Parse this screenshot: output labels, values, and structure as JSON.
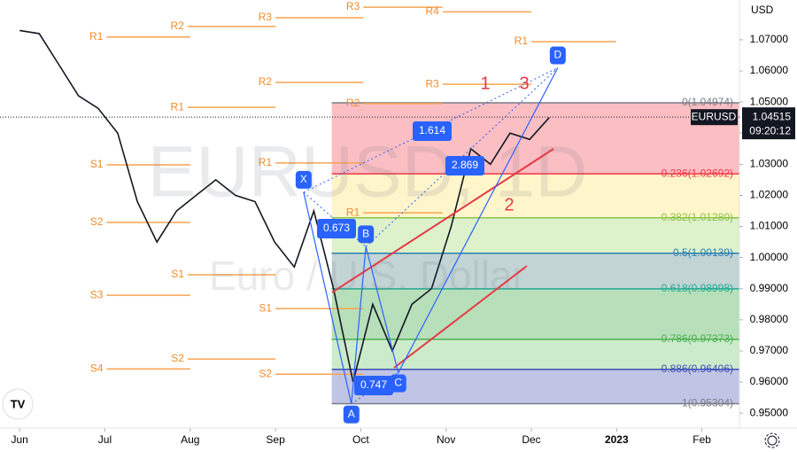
{
  "chart_data": {
    "type": "line",
    "currency": "USD",
    "watermark": "EURUSD, 1D",
    "watermark_sub": "Euro / U.S. Dollar",
    "symbol": "EURUSD",
    "last_price": {
      "value": 1.04515,
      "label": "1.04515"
    },
    "countdown": "09:20:12",
    "xlim": [
      -0.23,
      8.44
    ],
    "ylim": [
      0.9452,
      1.0828
    ],
    "xticks": [
      {
        "value": 0,
        "label": "Jun"
      },
      {
        "value": 1,
        "label": "Jul"
      },
      {
        "value": 2,
        "label": "Aug"
      },
      {
        "value": 3,
        "label": "Sep"
      },
      {
        "value": 4,
        "label": "Oct"
      },
      {
        "value": 5,
        "label": "Nov"
      },
      {
        "value": 6,
        "label": "Dec"
      },
      {
        "value": 7,
        "label": "2023"
      },
      {
        "value": 8,
        "label": "Feb"
      }
    ],
    "yticks": [
      {
        "value": 0.95,
        "label": "0.95000"
      },
      {
        "value": 0.96,
        "label": "0.96000"
      },
      {
        "value": 0.97,
        "label": "0.97000"
      },
      {
        "value": 0.98,
        "label": "0.98000"
      },
      {
        "value": 0.99,
        "label": "0.99000"
      },
      {
        "value": 1.0,
        "label": "1.00000"
      },
      {
        "value": 1.01,
        "label": "1.01000"
      },
      {
        "value": 1.02,
        "label": "1.02000"
      },
      {
        "value": 1.03,
        "label": "1.03000"
      },
      {
        "value": 1.04,
        "label": "1.04000"
      },
      {
        "value": 1.05,
        "label": "1.05000"
      },
      {
        "value": 1.06,
        "label": "1.06000"
      },
      {
        "value": 1.07,
        "label": "1.07000"
      }
    ],
    "series": [
      {
        "color": "#131722",
        "x": [
          0,
          0.23,
          0.46,
          0.69,
          0.92,
          1.15,
          1.38,
          1.61,
          1.84,
          2.07,
          2.3,
          2.53,
          2.76,
          2.99,
          3.22,
          3.45,
          3.68,
          3.91,
          4.14,
          4.37,
          4.6,
          4.83,
          5.06,
          5.29,
          5.52,
          5.75,
          5.98,
          6.21
        ],
        "values": [
          1.073,
          1.072,
          1.062,
          1.052,
          1.048,
          1.04,
          1.018,
          1.005,
          1.015,
          1.02,
          1.025,
          1.02,
          1.018,
          1.005,
          0.997,
          1.015,
          0.99,
          0.96,
          0.985,
          0.97,
          0.985,
          0.99,
          1.01,
          1.035,
          1.03,
          1.04,
          1.038,
          1.045
        ]
      }
    ],
    "fib_x": [
      3.66,
      8.44
    ],
    "fib_levels": [
      {
        "value": 1.04974,
        "label": "0(1.04974)",
        "color": "#787b86"
      },
      {
        "value": 1.02692,
        "label": "0.236(1.02692)",
        "color": "#f23645"
      },
      {
        "value": 1.0128,
        "label": "0.382(1.01280)",
        "color": "#8bc34a"
      },
      {
        "value": 1.00139,
        "label": "0.5(1.00139)",
        "color": "#2a7fb0"
      },
      {
        "value": 0.98998,
        "label": "0.618(0.98998)",
        "color": "#22ab94"
      },
      {
        "value": 0.97373,
        "label": "0.786(0.97373)",
        "color": "#4caf50"
      },
      {
        "value": 0.96406,
        "label": "0.886(0.96406)",
        "color": "#3f51b5"
      },
      {
        "value": 0.95304,
        "label": "1(0.95304)",
        "color": "#787b86"
      }
    ],
    "fib_zone_colors": [
      "rgba(242,54,69,0.32)",
      "rgba(255,236,150,0.5)",
      "rgba(180,225,140,0.45)",
      "rgba(120,160,160,0.45)",
      "rgba(76,175,80,0.4)",
      "rgba(140,210,140,0.45)",
      "rgba(100,110,190,0.4)"
    ],
    "pivots": [
      {
        "label": "R1",
        "value": 1.0709,
        "x": [
          1.02,
          2.0
        ]
      },
      {
        "label": "R2",
        "value": 1.0743,
        "x": [
          1.97,
          3.0
        ]
      },
      {
        "label": "R3",
        "value": 1.0771,
        "x": [
          3.0,
          4.03
        ]
      },
      {
        "label": "R3",
        "value": 1.0805,
        "x": [
          4.03,
          4.96
        ]
      },
      {
        "label": "R4",
        "value": 1.079,
        "x": [
          4.96,
          6.0
        ]
      },
      {
        "label": "R1",
        "value": 1.0694,
        "x": [
          6.0,
          6.99
        ]
      },
      {
        "label": "R2",
        "value": 1.0563,
        "x": [
          3.0,
          4.03
        ]
      },
      {
        "label": "R1",
        "value": 1.0483,
        "x": [
          1.97,
          3.0
        ]
      },
      {
        "label": "R2",
        "value": 1.0495,
        "x": [
          4.03,
          4.96
        ]
      },
      {
        "label": "R3",
        "value": 1.0557,
        "x": [
          4.96,
          6.0
        ]
      },
      {
        "label": "R1",
        "value": 1.0304,
        "x": [
          3.0,
          4.03
        ]
      },
      {
        "label": "S1",
        "value": 1.0298,
        "x": [
          1.02,
          2.0
        ]
      },
      {
        "label": "S2",
        "value": 1.0113,
        "x": [
          1.02,
          2.0
        ]
      },
      {
        "label": "R1",
        "value": 1.0144,
        "x": [
          4.03,
          4.96
        ]
      },
      {
        "label": "S1",
        "value": 0.9945,
        "x": [
          1.97,
          3.0
        ]
      },
      {
        "label": "S1",
        "value": 0.9836,
        "x": [
          3.0,
          4.03
        ]
      },
      {
        "label": "S3",
        "value": 0.9879,
        "x": [
          1.02,
          2.0
        ]
      },
      {
        "label": "S2",
        "value": 0.9674,
        "x": [
          1.97,
          3.0
        ]
      },
      {
        "label": "S4",
        "value": 0.9642,
        "x": [
          1.02,
          2.0
        ]
      },
      {
        "label": "S2",
        "value": 0.9625,
        "x": [
          3.0,
          4.03
        ]
      }
    ],
    "pattern": [
      {
        "label": "X",
        "x": 3.33,
        "value": 1.021
      },
      {
        "label": "A",
        "x": 3.89,
        "value": 0.953
      },
      {
        "label": "B",
        "x": 4.06,
        "value": 1.0035
      },
      {
        "label": "C",
        "x": 4.44,
        "value": 0.963
      },
      {
        "label": "D",
        "x": 6.31,
        "value": 1.061
      }
    ],
    "ratios": [
      0.673,
      0.747,
      1.614,
      2.869
    ],
    "waves": [
      "1",
      "2",
      "3"
    ]
  }
}
